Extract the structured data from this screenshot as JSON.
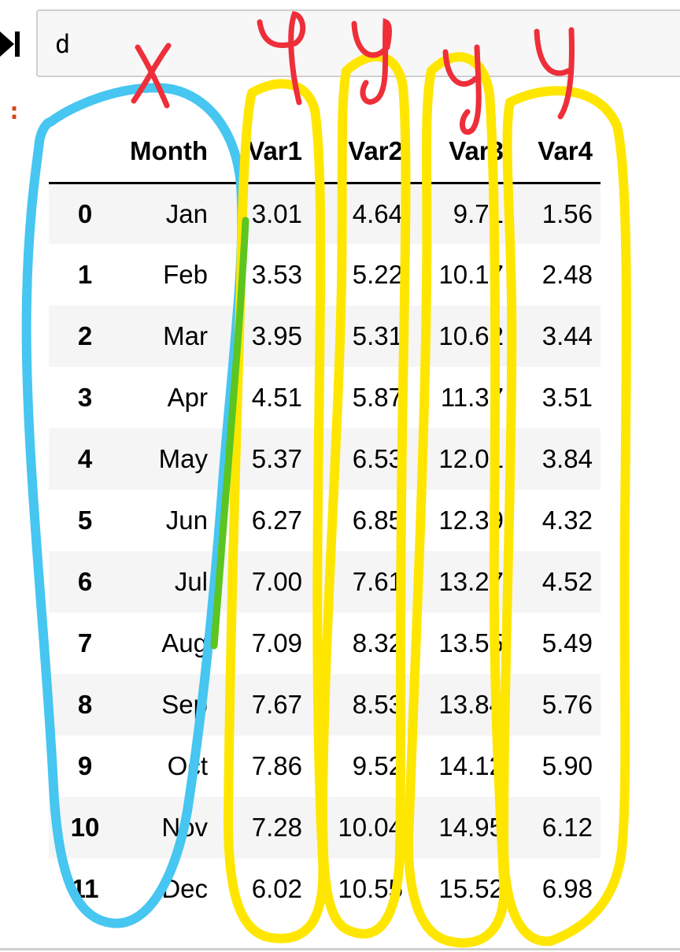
{
  "cell": {
    "code": "d"
  },
  "table": {
    "index_header": "",
    "columns": [
      "Month",
      "Var1",
      "Var2",
      "Var3",
      "Var4"
    ],
    "rows": [
      {
        "index": "0",
        "month": "Jan",
        "var1": "3.01",
        "var2": "4.64",
        "var3": "9.71",
        "var4": "1.56"
      },
      {
        "index": "1",
        "month": "Feb",
        "var1": "3.53",
        "var2": "5.22",
        "var3": "10.17",
        "var4": "2.48"
      },
      {
        "index": "2",
        "month": "Mar",
        "var1": "3.95",
        "var2": "5.31",
        "var3": "10.62",
        "var4": "3.44"
      },
      {
        "index": "3",
        "month": "Apr",
        "var1": "4.51",
        "var2": "5.87",
        "var3": "11.37",
        "var4": "3.51"
      },
      {
        "index": "4",
        "month": "May",
        "var1": "5.37",
        "var2": "6.53",
        "var3": "12.01",
        "var4": "3.84"
      },
      {
        "index": "5",
        "month": "Jun",
        "var1": "6.27",
        "var2": "6.85",
        "var3": "12.39",
        "var4": "4.32"
      },
      {
        "index": "6",
        "month": "Jul",
        "var1": "7.00",
        "var2": "7.61",
        "var3": "13.27",
        "var4": "4.52"
      },
      {
        "index": "7",
        "month": "Aug",
        "var1": "7.09",
        "var2": "8.32",
        "var3": "13.55",
        "var4": "5.49"
      },
      {
        "index": "8",
        "month": "Sep",
        "var1": "7.67",
        "var2": "8.53",
        "var3": "13.84",
        "var4": "5.76"
      },
      {
        "index": "9",
        "month": "Oct",
        "var1": "7.86",
        "var2": "9.52",
        "var3": "14.12",
        "var4": "5.90"
      },
      {
        "index": "10",
        "month": "Nov",
        "var1": "7.28",
        "var2": "10.04",
        "var3": "14.95",
        "var4": "6.12"
      },
      {
        "index": "11",
        "month": "Dec",
        "var1": "6.02",
        "var2": "10.55",
        "var3": "15.52",
        "var4": "6.98"
      }
    ]
  },
  "annotations": {
    "x_label": "x",
    "y_labels": [
      "y",
      "y",
      "y",
      "y"
    ],
    "colors": {
      "x_loop": "#46c6f0",
      "y_loop": "#ffe600",
      "ink": "#ee2f3a",
      "overlap": "#5cc51f"
    }
  },
  "icons": {
    "run": "skip-to-end-icon"
  },
  "colors": {
    "prompt": "#d84315",
    "cell_border": "#cfcfcf",
    "cell_bg": "#f7f7f7",
    "row_stripe": "#f5f5f5"
  }
}
